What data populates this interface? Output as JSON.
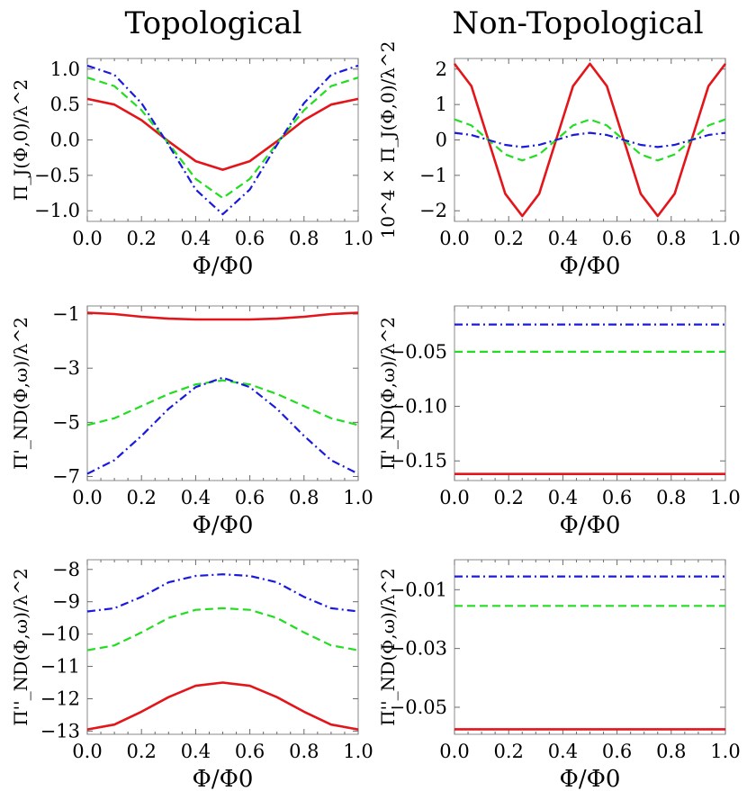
{
  "column_titles": [
    "Topological",
    "Non-Topological"
  ],
  "series_styles": [
    {
      "name": "red",
      "color": "#e3151b",
      "dash": "solid"
    },
    {
      "name": "green",
      "color": "#22dd22",
      "dash": "dashed"
    },
    {
      "name": "blue",
      "color": "#1a1adc",
      "dash": "dashdot"
    }
  ],
  "chart_data": [
    {
      "id": "top-left",
      "type": "line",
      "xlabel": "Φ/Φ0",
      "ylabel_html": "Π_J(Φ,0)/λ²",
      "ylabel": "Π_J(Φ,0)/λ^2",
      "xlim": [
        0,
        1
      ],
      "ylim": [
        -1.15,
        1.15
      ],
      "xticks": [
        "0.0",
        "0.2",
        "0.4",
        "0.6",
        "0.8",
        "1.0"
      ],
      "yticks": [
        {
          "v": 1.0,
          "t": "1.0"
        },
        {
          "v": 0.5,
          "t": "0.5"
        },
        {
          "v": 0.0,
          "t": "0.0"
        },
        {
          "v": -0.5,
          "t": "-0.5"
        },
        {
          "v": -1.0,
          "t": "-1.0"
        }
      ],
      "series": [
        {
          "name": "red",
          "x": [
            0,
            0.1,
            0.2,
            0.3,
            0.4,
            0.5,
            0.6,
            0.7,
            0.8,
            0.9,
            1.0
          ],
          "y": [
            0.58,
            0.5,
            0.28,
            -0.02,
            -0.3,
            -0.42,
            -0.3,
            -0.02,
            0.28,
            0.5,
            0.58
          ]
        },
        {
          "name": "green",
          "x": [
            0,
            0.1,
            0.2,
            0.3,
            0.4,
            0.5,
            0.6,
            0.7,
            0.8,
            0.9,
            1.0
          ],
          "y": [
            0.88,
            0.76,
            0.42,
            -0.05,
            -0.55,
            -0.82,
            -0.55,
            -0.05,
            0.42,
            0.76,
            0.88
          ]
        },
        {
          "name": "blue",
          "x": [
            0,
            0.1,
            0.2,
            0.3,
            0.4,
            0.5,
            0.6,
            0.7,
            0.8,
            0.9,
            1.0
          ],
          "y": [
            1.05,
            0.92,
            0.52,
            -0.07,
            -0.7,
            -1.05,
            -0.7,
            -0.07,
            0.52,
            0.92,
            1.05
          ]
        }
      ]
    },
    {
      "id": "top-right",
      "type": "line",
      "xlabel": "Φ/Φ0",
      "ylabel": "10^4 × Π_J(Φ,0)/λ^2",
      "xlim": [
        0,
        1
      ],
      "ylim": [
        -2.3,
        2.3
      ],
      "xticks": [
        "0.0",
        "0.2",
        "0.4",
        "0.6",
        "0.8",
        "1.0"
      ],
      "yticks": [
        {
          "v": 2,
          "t": "2"
        },
        {
          "v": 1,
          "t": "1"
        },
        {
          "v": 0,
          "t": "0"
        },
        {
          "v": -1,
          "t": "-1"
        },
        {
          "v": -2,
          "t": "-2"
        }
      ],
      "series": [
        {
          "name": "red",
          "x": [
            0,
            0.0625,
            0.125,
            0.1875,
            0.25,
            0.3125,
            0.375,
            0.4375,
            0.5,
            0.5625,
            0.625,
            0.6875,
            0.75,
            0.8125,
            0.875,
            0.9375,
            1.0
          ],
          "y": [
            2.15,
            1.52,
            0,
            -1.52,
            -2.15,
            -1.52,
            0,
            1.52,
            2.15,
            1.52,
            0,
            -1.52,
            -2.15,
            -1.52,
            0,
            1.52,
            2.15
          ]
        },
        {
          "name": "green",
          "x": [
            0,
            0.0625,
            0.125,
            0.1875,
            0.25,
            0.3125,
            0.375,
            0.4375,
            0.5,
            0.5625,
            0.625,
            0.6875,
            0.75,
            0.8125,
            0.875,
            0.9375,
            1.0
          ],
          "y": [
            0.58,
            0.41,
            0,
            -0.41,
            -0.58,
            -0.41,
            0,
            0.41,
            0.58,
            0.41,
            0,
            -0.41,
            -0.58,
            -0.41,
            0,
            0.41,
            0.58
          ]
        },
        {
          "name": "blue",
          "x": [
            0,
            0.0625,
            0.125,
            0.1875,
            0.25,
            0.3125,
            0.375,
            0.4375,
            0.5,
            0.5625,
            0.625,
            0.6875,
            0.75,
            0.8125,
            0.875,
            0.9375,
            1.0
          ],
          "y": [
            0.2,
            0.14,
            0,
            -0.14,
            -0.2,
            -0.14,
            0,
            0.14,
            0.2,
            0.14,
            0,
            -0.14,
            -0.2,
            -0.14,
            0,
            0.14,
            0.2
          ]
        }
      ]
    },
    {
      "id": "mid-left",
      "type": "line",
      "xlabel": "Φ/Φ0",
      "ylabel": "Π'_ND(Φ,ω)/λ^2",
      "xlim": [
        0,
        1
      ],
      "ylim": [
        -7.15,
        -0.7
      ],
      "xticks": [
        "0.0",
        "0.2",
        "0.4",
        "0.6",
        "0.8",
        "1.0"
      ],
      "yticks": [
        {
          "v": -1,
          "t": "-1"
        },
        {
          "v": -3,
          "t": "-3"
        },
        {
          "v": -5,
          "t": "-5"
        },
        {
          "v": -7,
          "t": "-7"
        }
      ],
      "series": [
        {
          "name": "red",
          "x": [
            0,
            0.1,
            0.2,
            0.3,
            0.4,
            0.5,
            0.6,
            0.7,
            0.8,
            0.9,
            1.0
          ],
          "y": [
            -0.95,
            -1.0,
            -1.1,
            -1.17,
            -1.2,
            -1.2,
            -1.2,
            -1.17,
            -1.1,
            -1.0,
            -0.95
          ]
        },
        {
          "name": "green",
          "x": [
            0,
            0.1,
            0.2,
            0.3,
            0.4,
            0.5,
            0.6,
            0.7,
            0.8,
            0.9,
            1.0
          ],
          "y": [
            -5.1,
            -4.85,
            -4.4,
            -3.95,
            -3.6,
            -3.45,
            -3.6,
            -3.95,
            -4.4,
            -4.85,
            -5.1
          ]
        },
        {
          "name": "blue",
          "x": [
            0,
            0.1,
            0.2,
            0.3,
            0.4,
            0.5,
            0.6,
            0.7,
            0.8,
            0.9,
            1.0
          ],
          "y": [
            -6.9,
            -6.4,
            -5.5,
            -4.5,
            -3.7,
            -3.35,
            -3.7,
            -4.5,
            -5.5,
            -6.4,
            -6.9
          ]
        }
      ]
    },
    {
      "id": "mid-right",
      "type": "line",
      "xlabel": "Φ/Φ0",
      "ylabel": "Π'_ND(Φ,ω)/λ^2",
      "xlim": [
        0,
        1
      ],
      "ylim": [
        -0.168,
        -0.008
      ],
      "xticks": [
        "0.0",
        "0.2",
        "0.4",
        "0.6",
        "0.8",
        "1.0"
      ],
      "yticks": [
        {
          "v": -0.05,
          "t": "-0.05"
        },
        {
          "v": -0.1,
          "t": "-0.10"
        },
        {
          "v": -0.15,
          "t": "-0.15"
        }
      ],
      "series": [
        {
          "name": "red",
          "x": [
            0,
            1
          ],
          "y": [
            -0.162,
            -0.162
          ]
        },
        {
          "name": "green",
          "x": [
            0,
            1
          ],
          "y": [
            -0.05,
            -0.05
          ]
        },
        {
          "name": "blue",
          "x": [
            0,
            1
          ],
          "y": [
            -0.025,
            -0.025
          ]
        }
      ]
    },
    {
      "id": "bot-left",
      "type": "line",
      "xlabel": "Φ/Φ0",
      "ylabel": "Π''_ND(Φ,ω)/λ^2",
      "xlim": [
        0,
        1
      ],
      "ylim": [
        -13.1,
        -7.7
      ],
      "xticks": [
        "0.0",
        "0.2",
        "0.4",
        "0.6",
        "0.8",
        "1.0"
      ],
      "yticks": [
        {
          "v": -8,
          "t": "-8"
        },
        {
          "v": -9,
          "t": "-9"
        },
        {
          "v": -10,
          "t": "-10"
        },
        {
          "v": -11,
          "t": "-11"
        },
        {
          "v": -12,
          "t": "-12"
        },
        {
          "v": -13,
          "t": "-13"
        }
      ],
      "series": [
        {
          "name": "red",
          "x": [
            0,
            0.1,
            0.2,
            0.3,
            0.4,
            0.5,
            0.6,
            0.7,
            0.8,
            0.9,
            1.0
          ],
          "y": [
            -12.95,
            -12.8,
            -12.4,
            -11.95,
            -11.6,
            -11.5,
            -11.6,
            -11.95,
            -12.4,
            -12.8,
            -12.95
          ]
        },
        {
          "name": "green",
          "x": [
            0,
            0.1,
            0.2,
            0.3,
            0.4,
            0.5,
            0.6,
            0.7,
            0.8,
            0.9,
            1.0
          ],
          "y": [
            -10.5,
            -10.35,
            -9.95,
            -9.5,
            -9.25,
            -9.2,
            -9.25,
            -9.5,
            -9.95,
            -10.35,
            -10.5
          ]
        },
        {
          "name": "blue",
          "x": [
            0,
            0.1,
            0.2,
            0.3,
            0.4,
            0.5,
            0.6,
            0.7,
            0.8,
            0.9,
            1.0
          ],
          "y": [
            -9.3,
            -9.2,
            -8.85,
            -8.4,
            -8.2,
            -8.15,
            -8.2,
            -8.4,
            -8.85,
            -9.2,
            -9.3
          ]
        }
      ]
    },
    {
      "id": "bot-right",
      "type": "line",
      "xlabel": "Φ/Φ0",
      "ylabel": "Π''_ND(Φ,ω)/λ^2",
      "xlim": [
        0,
        1
      ],
      "ylim": [
        -0.0592,
        0.0002
      ],
      "xticks": [
        "0.0",
        "0.2",
        "0.4",
        "0.6",
        "0.8",
        "1.0"
      ],
      "yticks": [
        {
          "v": -0.01,
          "t": "-0.01"
        },
        {
          "v": -0.03,
          "t": "-0.03"
        },
        {
          "v": -0.05,
          "t": "-0.05"
        }
      ],
      "series": [
        {
          "name": "red",
          "x": [
            0,
            1
          ],
          "y": [
            -0.0575,
            -0.0575
          ]
        },
        {
          "name": "green",
          "x": [
            0,
            1
          ],
          "y": [
            -0.0155,
            -0.0155
          ]
        },
        {
          "name": "blue",
          "x": [
            0,
            1
          ],
          "y": [
            -0.0055,
            -0.0055
          ]
        }
      ]
    }
  ]
}
